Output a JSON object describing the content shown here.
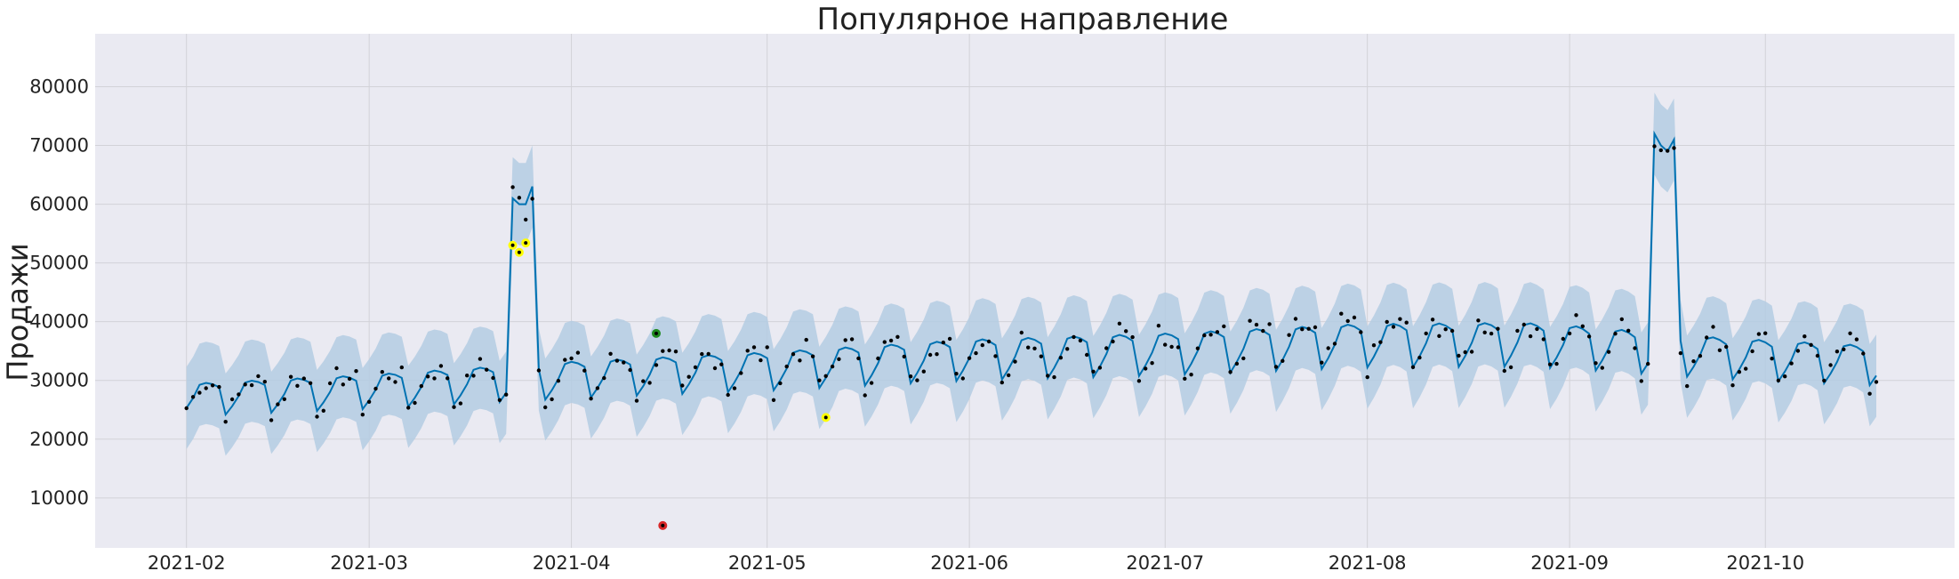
{
  "chart_data": {
    "type": "line",
    "title": "Популярное направление",
    "xlabel": "",
    "ylabel": "Продажи",
    "xlim": [
      "2021-01-18",
      "2021-10-30"
    ],
    "ylim": [
      1500,
      89000
    ],
    "grid": true,
    "x_ticks": [
      "2021-02",
      "2021-03",
      "2021-04",
      "2021-05",
      "2021-06",
      "2021-07",
      "2021-08",
      "2021-09",
      "2021-10"
    ],
    "y_ticks": [
      10000,
      20000,
      30000,
      40000,
      50000,
      60000,
      70000,
      80000
    ],
    "x_tick_labels": [
      "2021-02",
      "2021-03",
      "2021-04",
      "2021-05",
      "2021-06",
      "2021-07",
      "2021-08",
      "2021-09",
      "2021-10"
    ],
    "y_tick_labels": [
      "10000",
      "20000",
      "30000",
      "40000",
      "50000",
      "60000",
      "70000",
      "80000"
    ],
    "start_date": "2021-02-01",
    "end_date": "2021-10-18",
    "series": [
      {
        "role": "forecast",
        "weekly_pattern": [
          0.92,
          0.98,
          1.06,
          1.07,
          1.06,
          1.04,
          0.87
        ],
        "trend": [
          [
            0,
            27500
          ],
          [
            26,
            28800
          ],
          [
            59,
            31000
          ],
          [
            89,
            32500
          ],
          [
            120,
            34500
          ],
          [
            150,
            35500
          ],
          [
            180,
            37000
          ],
          [
            205,
            37200
          ],
          [
            215,
            36500
          ],
          [
            235,
            34800
          ],
          [
            259,
            33500
          ]
        ],
        "spikes": [
          [
            50,
            61000
          ],
          [
            51,
            60000
          ],
          [
            52,
            60000
          ],
          [
            53,
            63000
          ],
          [
            225,
            72000
          ],
          [
            226,
            70000
          ],
          [
            227,
            69000
          ],
          [
            228,
            71000
          ]
        ],
        "band_width": 7000
      },
      {
        "role": "observed",
        "noise_seed": 7,
        "noise_amplitude": 0.06
      }
    ],
    "highlight_points": [
      {
        "x": "2021-03-23",
        "y": 53000,
        "color": "#ffff00"
      },
      {
        "x": "2021-03-24",
        "y": 51800,
        "color": "#ffff00"
      },
      {
        "x": "2021-03-25",
        "y": 53400,
        "color": "#ffff00"
      },
      {
        "x": "2021-05-10",
        "y": 23700,
        "color": "#ffff00"
      },
      {
        "x": "2021-04-14",
        "y": 38000,
        "color": "#1f8a1f"
      },
      {
        "x": "2021-04-15",
        "y": 5300,
        "color": "#d62728"
      }
    ],
    "colors": {
      "plot_background": "#eaeaf2",
      "grid": "#d2d2d8",
      "line": "#0072b2",
      "band": "#b4cde3",
      "points": "#000000"
    }
  }
}
